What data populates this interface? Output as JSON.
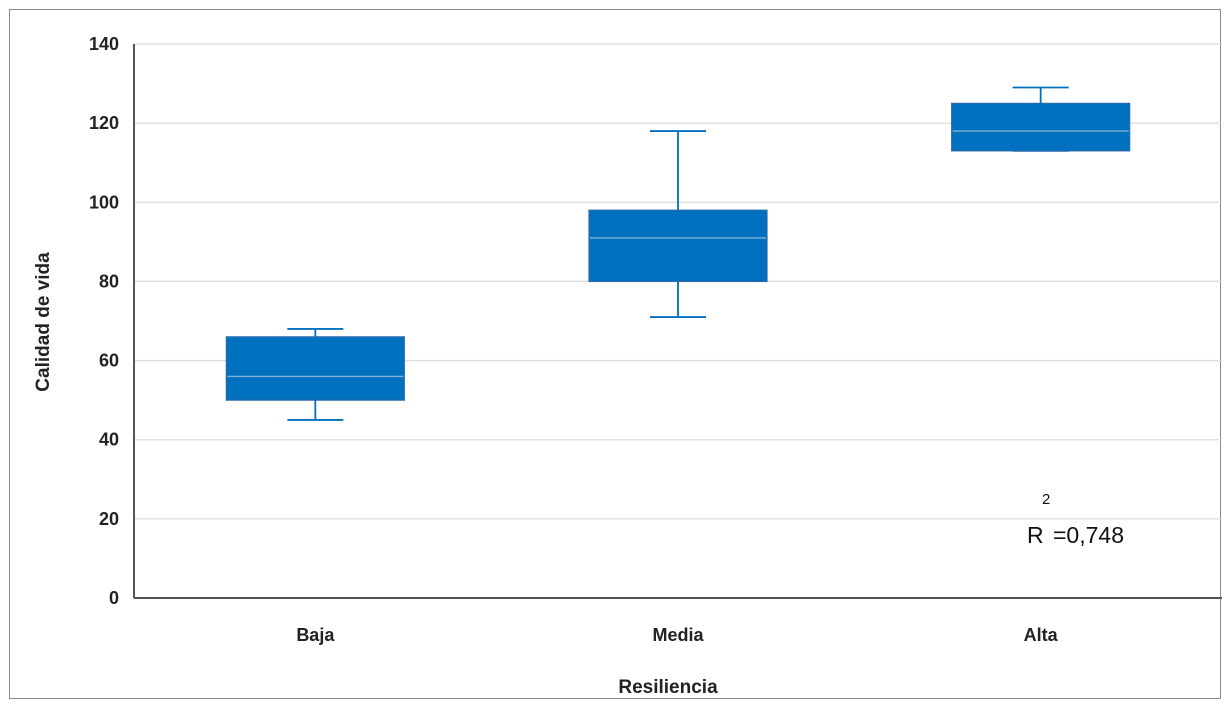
{
  "chart_data": {
    "type": "boxplot",
    "xlabel": "Resiliencia",
    "ylabel": "Calidad de vida",
    "ylim": [
      0,
      140
    ],
    "yticks": [
      0,
      20,
      40,
      60,
      80,
      100,
      120,
      140
    ],
    "grid": true,
    "box_color": "#0070C0",
    "median_color": "#7FB0D6",
    "categories": [
      "Baja",
      "Media",
      "Alta"
    ],
    "boxes": [
      {
        "category": "Baja",
        "min": 45,
        "q1": 50,
        "median": 56,
        "q3": 66,
        "max": 68
      },
      {
        "category": "Media",
        "min": 71,
        "q1": 80,
        "median": 91,
        "q3": 98,
        "max": 118
      },
      {
        "category": "Alta",
        "min": 113,
        "q1": 113,
        "median": 118,
        "q3": 125,
        "max": 129
      }
    ],
    "annotation": {
      "base": "R",
      "superscript": "2",
      "value": "=0,748"
    }
  }
}
